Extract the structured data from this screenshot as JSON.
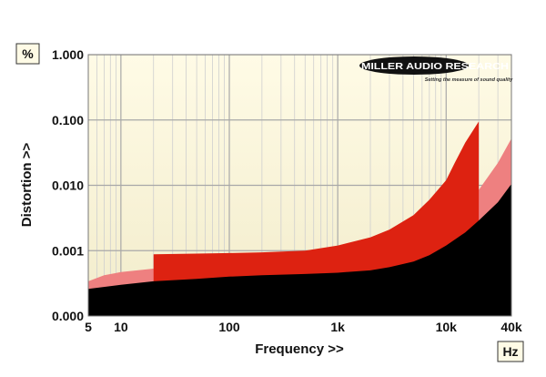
{
  "chart_data": {
    "type": "area",
    "xlabel": "Frequency >>",
    "ylabel": "Distortion >>",
    "x_unit": "Hz",
    "y_unit": "%",
    "x_scale": "log",
    "y_scale": "log",
    "xlim": [
      5,
      40000
    ],
    "ylim": [
      0.0001,
      1.0
    ],
    "grid": true,
    "x_ticks": [
      {
        "value": 5,
        "label": "5"
      },
      {
        "value": 10,
        "label": "10"
      },
      {
        "value": 100,
        "label": "100"
      },
      {
        "value": 1000,
        "label": "1k"
      },
      {
        "value": 10000,
        "label": "10k"
      },
      {
        "value": 40000,
        "label": "40k"
      }
    ],
    "y_ticks": [
      {
        "value": 0.0001,
        "label": "0.000"
      },
      {
        "value": 0.001,
        "label": "0.001"
      },
      {
        "value": 0.01,
        "label": "0.010"
      },
      {
        "value": 0.1,
        "label": "0.100"
      },
      {
        "value": 1.0,
        "label": "1.000"
      }
    ],
    "series": [
      {
        "color": "#ee8080",
        "x": [
          5,
          7,
          10,
          20,
          50,
          100,
          200,
          500,
          1000,
          2000,
          3000,
          5000,
          7000,
          10000,
          15000,
          20000,
          30000,
          40000
        ],
        "y": [
          0.00034,
          0.00042,
          0.00047,
          0.00053,
          0.00051,
          0.0005,
          0.00048,
          0.00049,
          0.00053,
          0.00062,
          0.00076,
          0.00105,
          0.0015,
          0.0026,
          0.0046,
          0.0085,
          0.022,
          0.052
        ]
      },
      {
        "color": "#dd2211",
        "x": [
          20,
          50,
          100,
          200,
          500,
          1000,
          2000,
          3000,
          5000,
          7000,
          10000,
          12000,
          15000,
          20000
        ],
        "y": [
          0.00088,
          0.0009,
          0.00092,
          0.00094,
          0.001,
          0.0012,
          0.0016,
          0.0021,
          0.0035,
          0.006,
          0.012,
          0.022,
          0.045,
          0.095
        ]
      },
      {
        "color": "#000000",
        "x": [
          5,
          10,
          20,
          50,
          100,
          200,
          500,
          1000,
          2000,
          3000,
          5000,
          7000,
          10000,
          15000,
          20000,
          30000,
          40000
        ],
        "y": [
          0.00026,
          0.0003,
          0.00034,
          0.00037,
          0.0004,
          0.00042,
          0.00044,
          0.00046,
          0.0005,
          0.00056,
          0.00068,
          0.00085,
          0.0012,
          0.0019,
          0.0029,
          0.0055,
          0.0105
        ]
      }
    ]
  },
  "logo": {
    "name": "MILLER AUDIO RESEARCH",
    "tagline": "Setting the measure of sound quality"
  }
}
